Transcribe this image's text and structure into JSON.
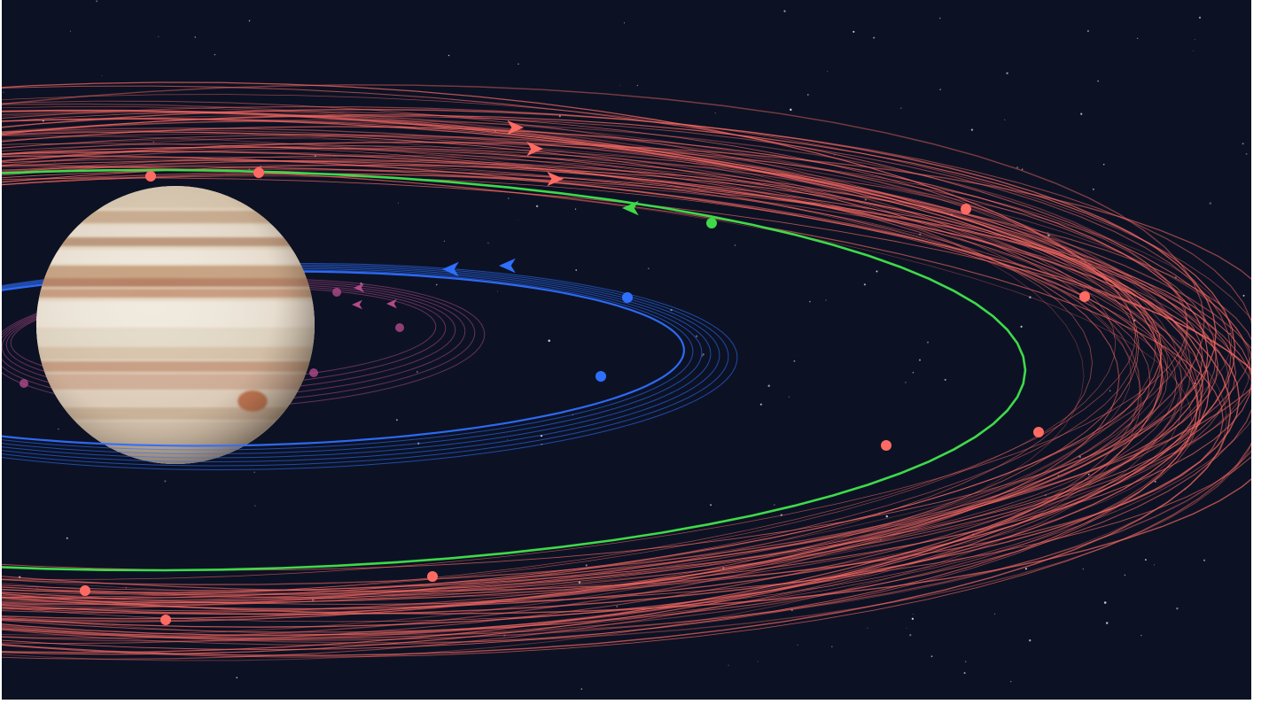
{
  "image": {
    "subject": "jupiter-moon-orbits",
    "background_color": "#0c1224",
    "planet": {
      "name_icon": "jupiter-planet-icon"
    },
    "orbit_groups": [
      {
        "name": "prograde-inner-orbits",
        "color": "#2f6fff"
      },
      {
        "name": "retrograde-outer-orbits",
        "color": "#ff6b63"
      },
      {
        "name": "highlighted-oddball-orbit",
        "color": "#3fd94a"
      },
      {
        "name": "faint-inner-orbits",
        "color": "#b24a8a"
      }
    ]
  }
}
